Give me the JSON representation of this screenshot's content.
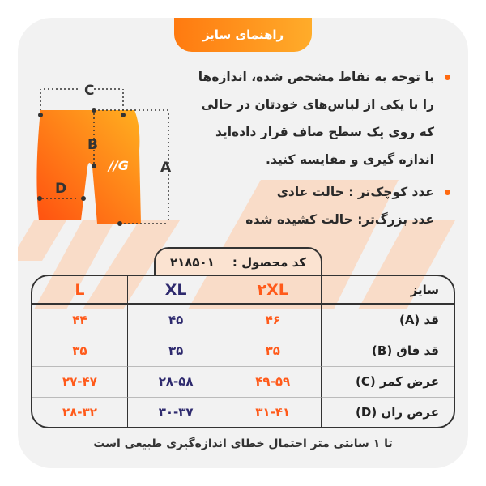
{
  "title": "راهنمای سایز",
  "instructions": [
    "با توجه به نقاط مشخص شده، اندازه‌ها",
    "را با یکی از لباس‌های خودتان در حالی",
    "که روی یک سطح صاف قرار داده‌اید",
    "اندازه گیری و مقایسه کنید."
  ],
  "notes": [
    "عدد کوچک‌تر : حالت عادی",
    "عدد بزرگ‌تر: حالت کشیده شده"
  ],
  "diagram": {
    "labels": {
      "a": "A",
      "b": "B",
      "c": "C",
      "d": "D"
    },
    "logo": "G"
  },
  "product_code": {
    "label": "کد محصول :",
    "value": "۲۱۸۵۰۱"
  },
  "table": {
    "header": [
      "سایز",
      "۲XL",
      "XL",
      "L"
    ],
    "rows": [
      {
        "label": "قد (A)",
        "values": [
          "۴۶",
          "۴۵",
          "۴۴"
        ]
      },
      {
        "label": "قد فاق (B)",
        "values": [
          "۳۵",
          "۳۵",
          "۳۵"
        ]
      },
      {
        "label": "عرض کمر (C)",
        "values": [
          "۴۹-۵۹",
          "۲۸-۵۸",
          "۲۷-۴۷"
        ]
      },
      {
        "label": "عرض ران (D)",
        "values": [
          "۳۱-۴۱",
          "۳۰-۳۷",
          "۲۸-۳۲"
        ]
      }
    ]
  },
  "footer": "تا ۱ سانتی متر احتمال خطای اندازه‌گیری طبیعی است",
  "colors": {
    "accent": "#ff5a1a",
    "navy": "#2e2a6e",
    "card": "#f2f2f2",
    "stripe": "#f9dcc8"
  }
}
